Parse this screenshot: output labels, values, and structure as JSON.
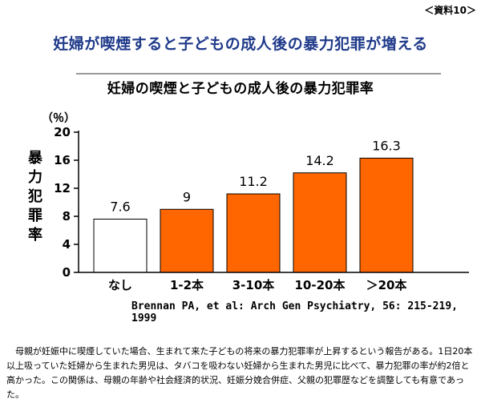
{
  "doc_label": "＜資料10＞",
  "headline": "妊婦が喫煙すると子どもの成人後の暴力犯罪が増える",
  "chart_data": {
    "type": "bar",
    "title": "妊婦の喫煙と子どもの成人後の暴力犯罪率",
    "ylabel": "暴力犯罪率",
    "ylabel_chars": [
      "暴",
      "力",
      "犯",
      "罪",
      "率"
    ],
    "yunit": "（％）",
    "ylim": [
      0,
      20
    ],
    "yticks": [
      0,
      4,
      8,
      12,
      16,
      20
    ],
    "categories": [
      "なし",
      "1-2本",
      "3-10本",
      "10-20本",
      "＞20本"
    ],
    "values": [
      7.6,
      9,
      11.2,
      14.2,
      16.3
    ],
    "value_labels": [
      "7.6",
      "9",
      "11.2",
      "14.2",
      "16.3"
    ],
    "colors": [
      "#ffffff",
      "#ff6600",
      "#ff6600",
      "#ff6600",
      "#ff6600"
    ],
    "grid": false
  },
  "source": "Brennan PA, et al: Arch Gen Psychiatry, 56: 215-219, 1999",
  "note": "母親が妊娠中に喫煙していた場合、生まれて来た子どもの将来の暴力犯罪率が上昇するという報告がある。1日20本以上吸っていた妊婦から生まれた男児は、タバコを吸わない妊婦から生まれた男児に比べて、暴力犯罪の率が約2倍と高かった。この関係は、母親の年齢や社会経済的状況、妊娠分娩合併症、父親の犯罪歴などを調整しても有意であった。"
}
